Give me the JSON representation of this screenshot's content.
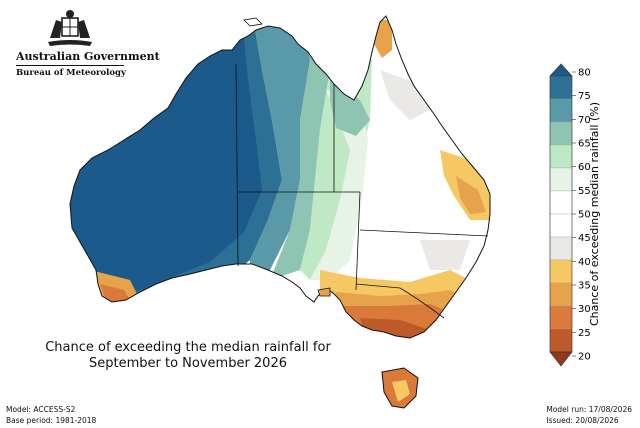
{
  "branding": {
    "government": "Australian Government",
    "agency": "Bureau of Meteorology"
  },
  "map_title": {
    "line1": "Chance of exceeding the median rainfall for",
    "line2": "September to November 2026"
  },
  "footer": {
    "model": "Model: ACCESS-S2",
    "base_period": "Base period: 1981-2018",
    "model_run": "Model run: 17/08/2026",
    "issued": "Issued: 20/08/2026"
  },
  "legend": {
    "title": "Chance of exceeding median rainfall (%)",
    "ticks": [
      "80",
      "75",
      "70",
      "65",
      "60",
      "55",
      "50",
      "45",
      "40",
      "35",
      "30",
      "25",
      "20"
    ],
    "bands": [
      {
        "range": ">80",
        "color": "#1b5a8a"
      },
      {
        "range": "75-80",
        "color": "#2c7095"
      },
      {
        "range": "70-75",
        "color": "#5a9aa8"
      },
      {
        "range": "65-70",
        "color": "#8ec4b2"
      },
      {
        "range": "60-65",
        "color": "#bfe8c4"
      },
      {
        "range": "55-60",
        "color": "#e6f3e6"
      },
      {
        "range": "50-55",
        "color": "#ffffff"
      },
      {
        "range": "45-50",
        "color": "#ffffff"
      },
      {
        "range": "40-45",
        "color": "#ebe9e6"
      },
      {
        "range": "35-40",
        "color": "#f6c864"
      },
      {
        "range": "30-35",
        "color": "#e7a24c"
      },
      {
        "range": "25-30",
        "color": "#d97a3a"
      },
      {
        "range": "20-25",
        "color": "#bc5a2a"
      },
      {
        "range": "<20",
        "color": "#8f3a1c"
      }
    ]
  }
}
